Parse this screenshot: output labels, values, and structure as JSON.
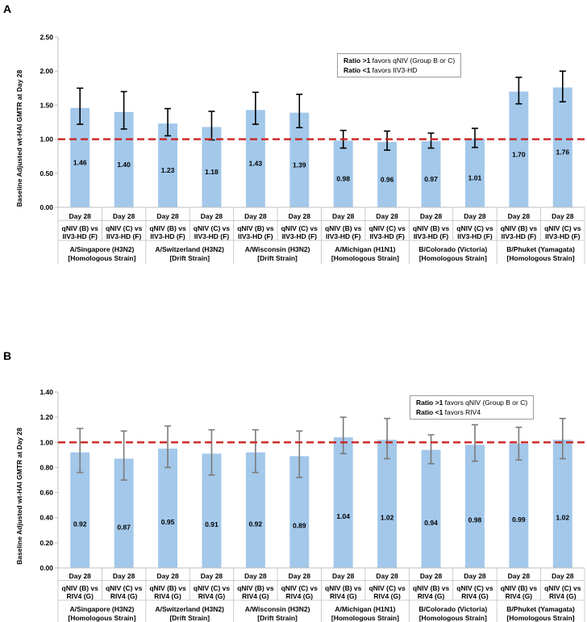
{
  "chart_data": [
    {
      "type": "bar",
      "panel_label": "A",
      "ylabel": "Baseline Adjusted wt-HAI GMTR at Day 28",
      "ylim": [
        0,
        2.5
      ],
      "yticks": [
        "0.00",
        "0.50",
        "1.00",
        "1.50",
        "2.00",
        "2.50"
      ],
      "ytick_values": [
        0,
        0.5,
        1.0,
        1.5,
        2.0,
        2.5
      ],
      "reference_line": 1.0,
      "legend": [
        {
          "bold": "Ratio >1",
          "text": " favors qNIV (Group B or C)"
        },
        {
          "bold": "Ratio <1",
          "text": " favors IIV3-HD"
        }
      ],
      "categories": [
        {
          "day": "Day 28",
          "comparison": [
            "qNIV (B) vs",
            "IIV3-HD (F)"
          ]
        },
        {
          "day": "Day 28",
          "comparison": [
            "qNIV (C) vs",
            "IIV3-HD (F)"
          ]
        },
        {
          "day": "Day 28",
          "comparison": [
            "qNIV (B) vs",
            "IIV3-HD (F)"
          ]
        },
        {
          "day": "Day 28",
          "comparison": [
            "qNIV (C) vs",
            "IIV3-HD (F)"
          ]
        },
        {
          "day": "Day 28",
          "comparison": [
            "qNIV (B) vs",
            "IIV3-HD (F)"
          ]
        },
        {
          "day": "Day 28",
          "comparison": [
            "qNIV (C) vs",
            "IIV3-HD (F)"
          ]
        },
        {
          "day": "Day 28",
          "comparison": [
            "qNIV (B) vs",
            "IIV3-HD (F)"
          ]
        },
        {
          "day": "Day 28",
          "comparison": [
            "qNIV (C) vs",
            "IIV3-HD (F)"
          ]
        },
        {
          "day": "Day 28",
          "comparison": [
            "qNIV (B) vs",
            "IIV3-HD (F)"
          ]
        },
        {
          "day": "Day 28",
          "comparison": [
            "qNIV (C) vs",
            "IIV3-HD (F)"
          ]
        },
        {
          "day": "Day 28",
          "comparison": [
            "qNIV (B) vs",
            "IIV3-HD (F)"
          ]
        },
        {
          "day": "Day 28",
          "comparison": [
            "qNIV (C) vs",
            "IIV3-HD (F)"
          ]
        }
      ],
      "groups": [
        [
          "A/Singapore (H3N2)",
          "[Homologous Strain]"
        ],
        [
          "A/Switzerland (H3N2)",
          "[Drift Strain]"
        ],
        [
          "A/Wisconsin (H3N2)",
          "[Drift Strain]"
        ],
        [
          "A/Michigan (H1N1)",
          "[Homologous Strain]"
        ],
        [
          "B/Colorado (Victoria)",
          "[Homologous Strain]"
        ],
        [
          "B/Phuket (Yamagata)",
          "[Homologous Strain]"
        ]
      ],
      "values": [
        1.46,
        1.4,
        1.23,
        1.18,
        1.43,
        1.39,
        0.98,
        0.96,
        0.97,
        1.01,
        1.7,
        1.76
      ],
      "value_labels": [
        "1.46",
        "1.40",
        "1.23",
        "1.18",
        "1.43",
        "1.39",
        "0.98",
        "0.96",
        "0.97",
        "1.01",
        "1.70",
        "1.76"
      ],
      "ci_lower": [
        1.22,
        1.15,
        1.05,
        0.99,
        1.22,
        1.17,
        0.87,
        0.84,
        0.87,
        0.88,
        1.52,
        1.55
      ],
      "ci_upper": [
        1.75,
        1.7,
        1.45,
        1.41,
        1.69,
        1.66,
        1.13,
        1.12,
        1.09,
        1.16,
        1.91,
        2.0
      ],
      "bar_color": "#a3c8ea",
      "errorbar_color": "#000000",
      "refline_color": "#cc2222"
    },
    {
      "type": "bar",
      "panel_label": "B",
      "ylabel": "Baseline Adjusted wt-HAI GMTR at Day 28",
      "ylim": [
        0,
        1.4
      ],
      "yticks": [
        "0.00",
        "0.20",
        "0.40",
        "0.60",
        "0.80",
        "1.00",
        "1.20",
        "1.40"
      ],
      "ytick_values": [
        0,
        0.2,
        0.4,
        0.6,
        0.8,
        1.0,
        1.2,
        1.4
      ],
      "reference_line": 1.0,
      "legend": [
        {
          "bold": "Ratio >1",
          "text": " favors qNIV (Group B or C)"
        },
        {
          "bold": "Ratio <1",
          "text": " favors RIV4"
        }
      ],
      "categories": [
        {
          "day": "Day 28",
          "comparison": [
            "qNIV (B) vs",
            "RIV4 (G)"
          ]
        },
        {
          "day": "Day 28",
          "comparison": [
            "qNIV (C) vs",
            "RIV4 (G)"
          ]
        },
        {
          "day": "Day 28",
          "comparison": [
            "qNIV (B) vs",
            "RIV4 (G)"
          ]
        },
        {
          "day": "Day 28",
          "comparison": [
            "qNIV (C) vs",
            "RIV4 (G)"
          ]
        },
        {
          "day": "Day 28",
          "comparison": [
            "qNIV (B) vs",
            "RIV4 (G)"
          ]
        },
        {
          "day": "Day 28",
          "comparison": [
            "qNIV (C) vs",
            "RIV4 (G)"
          ]
        },
        {
          "day": "Day 28",
          "comparison": [
            "qNIV (B) vs",
            "RIV4 (G)"
          ]
        },
        {
          "day": "Day 28",
          "comparison": [
            "qNIV (C) vs",
            "RIV4 (G)"
          ]
        },
        {
          "day": "Day 28",
          "comparison": [
            "qNIV (B) vs",
            "RIV4 (G)"
          ]
        },
        {
          "day": "Day 28",
          "comparison": [
            "qNIV (C) vs",
            "RIV4 (G)"
          ]
        },
        {
          "day": "Day 28",
          "comparison": [
            "qNIV (B) vs",
            "RIV4 (G)"
          ]
        },
        {
          "day": "Day 28",
          "comparison": [
            "qNIV (C) vs",
            "RIV4 (G)"
          ]
        }
      ],
      "groups": [
        [
          "A/Singapore (H3N2)",
          "[Homologous Strain]"
        ],
        [
          "A/Switzerland (H3N2)",
          "[Drift Strain]"
        ],
        [
          "A/Wisconsin (H3N2)",
          "[Drift Strain]"
        ],
        [
          "A/Michigan (H1N1)",
          "[Homologous Strain]"
        ],
        [
          "B/Colorado (Victoria)",
          "[Homologous Strain]"
        ],
        [
          "B/Phuket (Yamagata)",
          "[Homologous Strain]"
        ]
      ],
      "values": [
        0.92,
        0.87,
        0.95,
        0.91,
        0.92,
        0.89,
        1.04,
        1.02,
        0.94,
        0.98,
        0.99,
        1.02
      ],
      "value_labels": [
        "0.92",
        "0.87",
        "0.95",
        "0.91",
        "0.92",
        "0.89",
        "1.04",
        "1.02",
        "0.94",
        "0.98",
        "0.99",
        "1.02"
      ],
      "ci_lower": [
        0.76,
        0.7,
        0.8,
        0.74,
        0.76,
        0.72,
        0.91,
        0.87,
        0.83,
        0.85,
        0.86,
        0.87
      ],
      "ci_upper": [
        1.11,
        1.09,
        1.13,
        1.1,
        1.1,
        1.09,
        1.2,
        1.19,
        1.06,
        1.14,
        1.12,
        1.19
      ],
      "bar_color": "#a3c8ea",
      "errorbar_color": "#7a7a7a",
      "refline_color": "#cc2222"
    }
  ]
}
